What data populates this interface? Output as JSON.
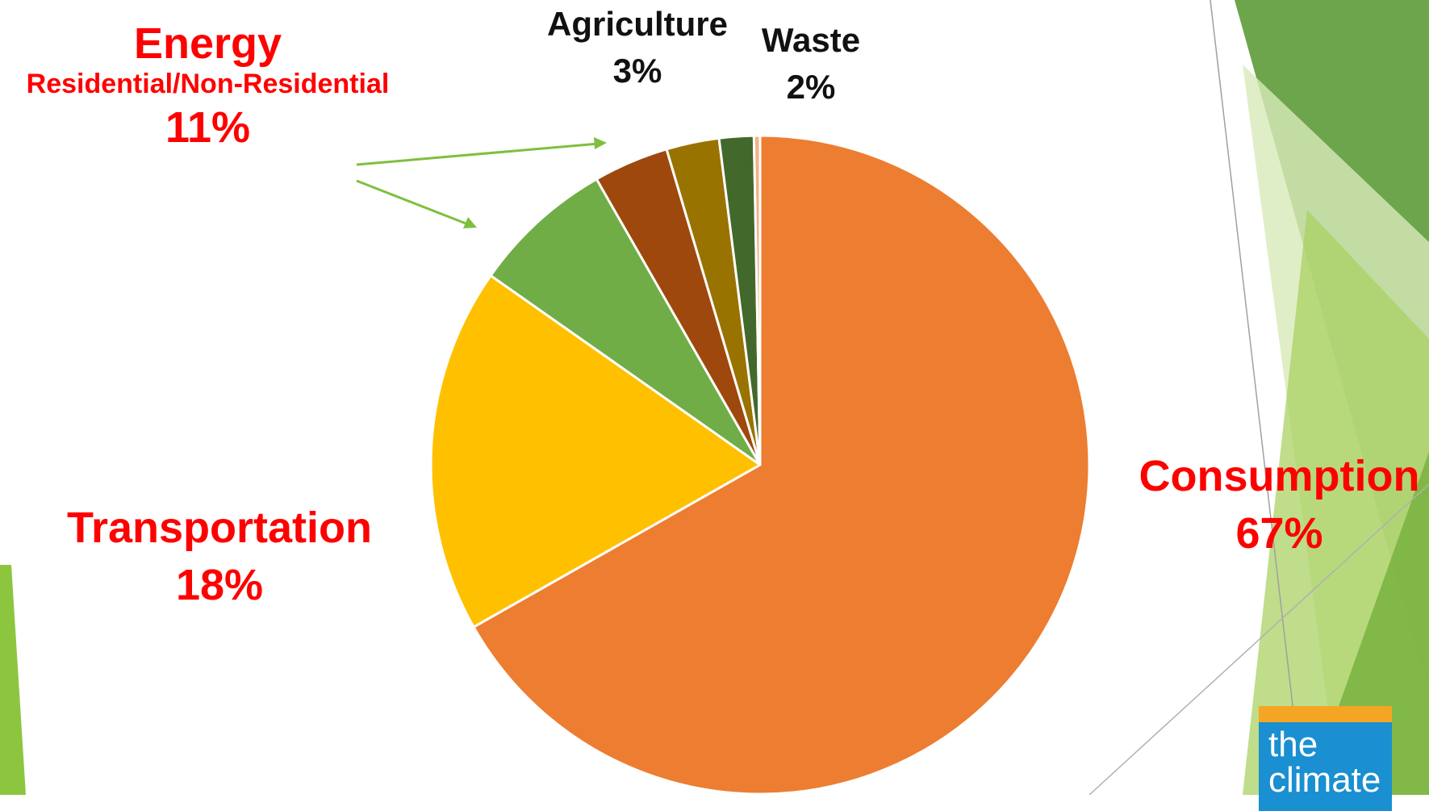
{
  "chart_data": {
    "type": "pie",
    "title": "",
    "slices": [
      {
        "label": "Consumption",
        "value": 67,
        "display": "67%",
        "color": "#ed7d31"
      },
      {
        "label": "Transportation",
        "value": 18,
        "display": "18%",
        "color": "#ffc000"
      },
      {
        "label": "Energy (Residential)",
        "value": 7,
        "display": "",
        "color": "#70ad47"
      },
      {
        "label": "Energy (Non-Residential)",
        "value": 3.7,
        "display": "",
        "color": "#9e480e"
      },
      {
        "label": "Agriculture",
        "value": 2.6,
        "display": "3%",
        "color": "#997300"
      },
      {
        "label": "Waste",
        "value": 1.7,
        "display": "2%",
        "color": "#43682b"
      },
      {
        "label": "Other",
        "value": 0.3,
        "display": "",
        "color": "#f4b183"
      }
    ],
    "start_angle_deg": 0,
    "direction": "clockwise",
    "legend": "none",
    "labels": {
      "energy_title": "Energy",
      "energy_subtitle": "Residential/Non-Residential",
      "energy_value": "11%",
      "transportation_title": "Transportation",
      "transportation_value": "18%",
      "consumption_title": "Consumption",
      "consumption_value": "67%",
      "agriculture_title": "Agriculture",
      "agriculture_value": "3%",
      "waste_title": "Waste",
      "waste_value": "2%"
    }
  },
  "logo": {
    "line1": "the",
    "line2": "climate"
  },
  "colors": {
    "label_red": "#ff0000",
    "arrow_green": "#7fbf3f",
    "deco_dark_green": "#5a9a35",
    "deco_light_green": "#a9d163",
    "deco_pale_green": "#d9ebc0",
    "logo_blue": "#1a8fd1",
    "logo_orange": "#f5a524"
  }
}
